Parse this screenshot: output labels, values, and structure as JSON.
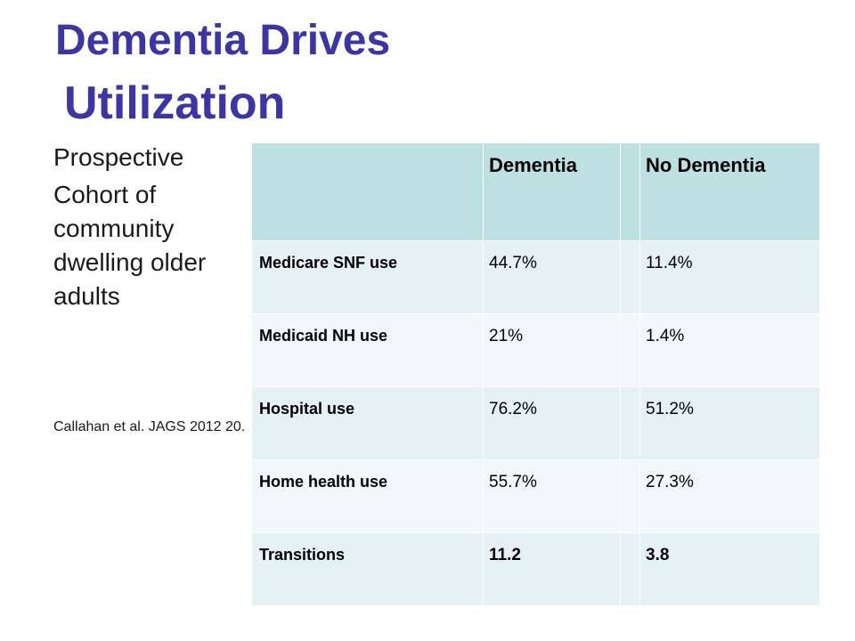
{
  "slide": {
    "title_line1": "Dementia Drives",
    "title_line2": "Utilization",
    "bullets": [
      "Prospective",
      "Cohort of community dwelling older adults"
    ],
    "citation": "Callahan et al. JAGS 2012 20."
  },
  "table": {
    "headers": [
      "",
      "Dementia",
      "",
      "No Dementia"
    ],
    "rows": [
      {
        "label": "Medicare SNF use",
        "dementia": "44.7%",
        "no_dementia": "11.4%"
      },
      {
        "label": "Medicaid NH use",
        "dementia": "21%",
        "no_dementia": "1.4%"
      },
      {
        "label": "Hospital use",
        "dementia": "76.2%",
        "no_dementia": "51.2%"
      },
      {
        "label": "Home health use",
        "dementia": "55.7%",
        "no_dementia": "27.3%"
      },
      {
        "label": "Transitions",
        "dementia": "11.2",
        "no_dementia": "3.8"
      }
    ]
  },
  "colors": {
    "title": "#3b35a6",
    "header_bg": "#bde0e3",
    "row_bg_a": "#e5f1f2",
    "row_bg_b": "#f2f8f9"
  }
}
